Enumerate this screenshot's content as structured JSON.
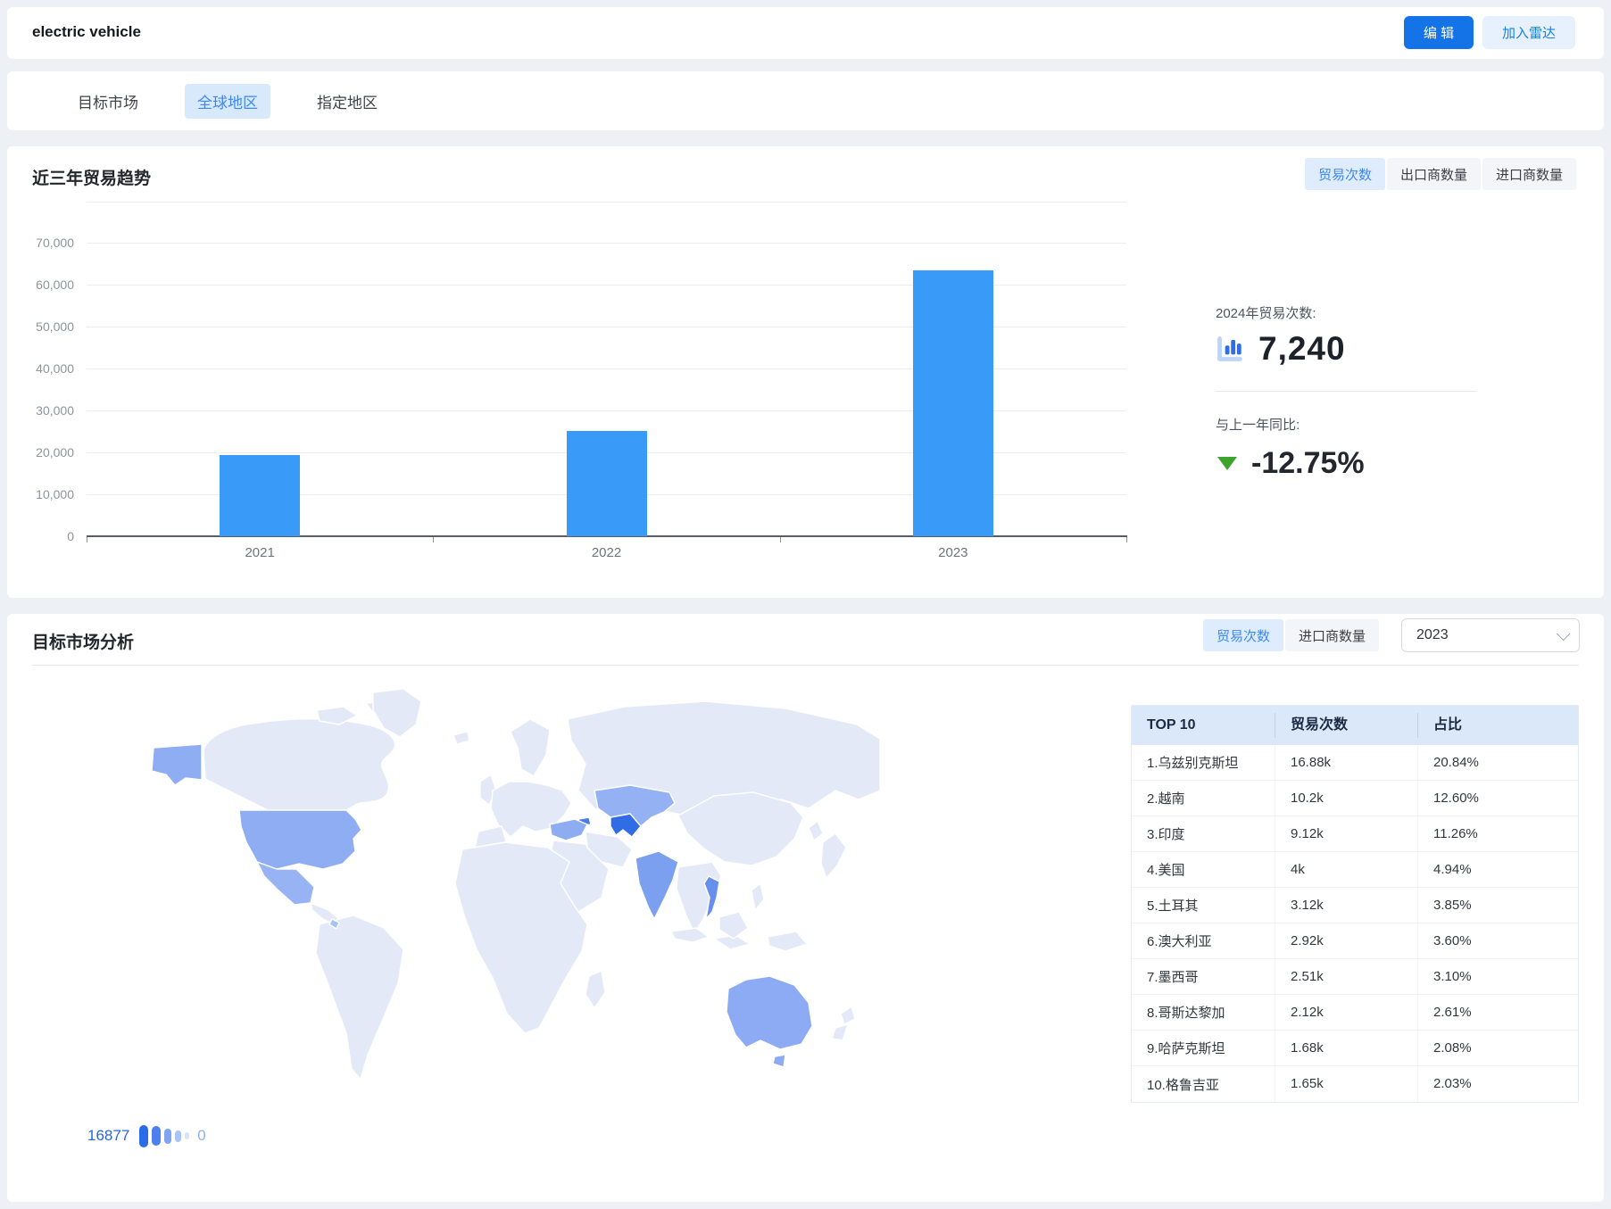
{
  "colors": {
    "primary_blue": "#1473e6",
    "light_blue_button_bg": "#e7f1fd",
    "active_toggle_bg": "#dfecfd",
    "active_toggle_text": "#3e88f2",
    "bar_blue": "#3a9af7",
    "yoy_green": "#3da32c",
    "table_header_bg": "#dbe8f9",
    "map_max_color": "#2f6ce6",
    "map_min_color": "#e3e9f7"
  },
  "header": {
    "title": "electric vehicle",
    "edit_label": "编 辑",
    "radar_label": "加入雷达"
  },
  "tabs": [
    {
      "id": "target-market",
      "label": "目标市场",
      "active": false
    },
    {
      "id": "global-region",
      "label": "全球地区",
      "active": true
    },
    {
      "id": "specified-region",
      "label": "指定地区",
      "active": false
    }
  ],
  "trend": {
    "title": "近三年贸易趋势",
    "toggles": [
      {
        "id": "trade-count",
        "label": "贸易次数",
        "active": true
      },
      {
        "id": "exporter-count",
        "label": "出口商数量",
        "active": false
      },
      {
        "id": "importer-count",
        "label": "进口商数量",
        "active": false
      }
    ],
    "stat_label": "2024年贸易次数:",
    "stat_value": "7,240",
    "yoy_label": "与上一年同比:",
    "yoy_value": "-12.75%",
    "yoy_direction": "down"
  },
  "market": {
    "title": "目标市场分析",
    "toggles": [
      {
        "id": "trade-count",
        "label": "贸易次数",
        "active": true
      },
      {
        "id": "importer-count",
        "label": "进口商数量",
        "active": false
      }
    ],
    "year_selected": "2023",
    "map_legend": {
      "max": "16877",
      "min": "0",
      "pill_colors": [
        "#2a6be8",
        "#4d80ec",
        "#7fa4f2",
        "#a9c4f6",
        "#d6e3fb"
      ]
    },
    "table": {
      "headers": [
        "TOP 10",
        "贸易次数",
        "占比"
      ],
      "rows": [
        {
          "country": "1.乌兹别克斯坦",
          "trades": "16.88k",
          "share": "20.84%"
        },
        {
          "country": "2.越南",
          "trades": "10.2k",
          "share": "12.60%"
        },
        {
          "country": "3.印度",
          "trades": "9.12k",
          "share": "11.26%"
        },
        {
          "country": "4.美国",
          "trades": "4k",
          "share": "4.94%"
        },
        {
          "country": "5.土耳其",
          "trades": "3.12k",
          "share": "3.85%"
        },
        {
          "country": "6.澳大利亚",
          "trades": "2.92k",
          "share": "3.60%"
        },
        {
          "country": "7.墨西哥",
          "trades": "2.51k",
          "share": "3.10%"
        },
        {
          "country": "8.哥斯达黎加",
          "trades": "2.12k",
          "share": "2.61%"
        },
        {
          "country": "9.哈萨克斯坦",
          "trades": "1.68k",
          "share": "2.08%"
        },
        {
          "country": "10.格鲁吉亚",
          "trades": "1.65k",
          "share": "2.03%"
        }
      ]
    }
  },
  "chart_data": [
    {
      "type": "bar",
      "title": "近三年贸易趋势",
      "series_name": "贸易次数",
      "categories": [
        "2021",
        "2022",
        "2023"
      ],
      "values": [
        19400,
        25200,
        63400
      ],
      "ylim": [
        0,
        70000
      ],
      "ytick_step": 10000,
      "ytick_labels": [
        "0",
        "10,000",
        "20,000",
        "30,000",
        "40,000",
        "50,000",
        "60,000",
        "70,000"
      ],
      "grid": true,
      "bar_color": "#3a9af7",
      "legend_position": "none"
    },
    {
      "type": "choropleth",
      "title": "目标市场分析 2023 贸易次数",
      "legend_range": [
        0,
        16877
      ],
      "regions": [
        "乌兹别克斯坦",
        "越南",
        "印度",
        "美国",
        "土耳其",
        "澳大利亚",
        "墨西哥",
        "哥斯达黎加",
        "哈萨克斯坦",
        "格鲁吉亚"
      ],
      "values": [
        16880,
        10200,
        9120,
        4000,
        3120,
        2920,
        2510,
        2120,
        1680,
        1650
      ]
    }
  ]
}
